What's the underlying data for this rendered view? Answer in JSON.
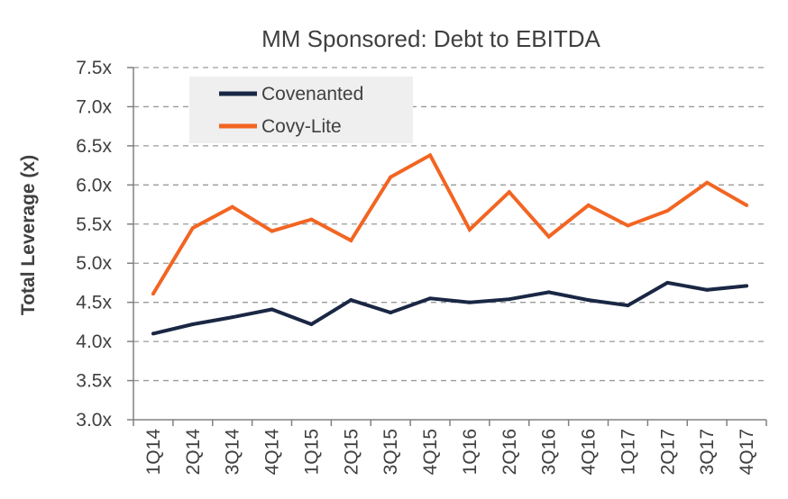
{
  "chart_data": {
    "type": "line",
    "title": "MM Sponsored: Debt to EBITDA",
    "xlabel": "",
    "ylabel": "Total Leverage (x)",
    "categories": [
      "1Q14",
      "2Q14",
      "3Q14",
      "4Q14",
      "1Q15",
      "2Q15",
      "3Q15",
      "4Q15",
      "1Q16",
      "2Q16",
      "3Q16",
      "4Q16",
      "1Q17",
      "2Q17",
      "3Q17",
      "4Q17"
    ],
    "ylim": [
      3.0,
      7.5
    ],
    "yticks": [
      3.0,
      3.5,
      4.0,
      4.5,
      5.0,
      5.5,
      6.0,
      6.5,
      7.0,
      7.5
    ],
    "ytick_labels": [
      "3.0x",
      "3.5x",
      "4.0x",
      "4.5x",
      "5.0x",
      "5.5x",
      "6.0x",
      "6.5x",
      "7.0x",
      "7.5x"
    ],
    "grid": true,
    "legend_position": "top-left",
    "series": [
      {
        "name": "Covenanted",
        "color": "#1a2744",
        "values": [
          4.1,
          4.22,
          4.31,
          4.41,
          4.22,
          4.53,
          4.37,
          4.55,
          4.5,
          4.54,
          4.63,
          4.53,
          4.46,
          4.75,
          4.66,
          4.71
        ]
      },
      {
        "name": "Covy-Lite",
        "color": "#f26522",
        "values": [
          4.61,
          5.45,
          5.72,
          5.41,
          5.56,
          5.29,
          6.1,
          6.38,
          5.43,
          5.91,
          5.34,
          5.74,
          5.48,
          5.67,
          6.03,
          5.74
        ]
      }
    ]
  }
}
